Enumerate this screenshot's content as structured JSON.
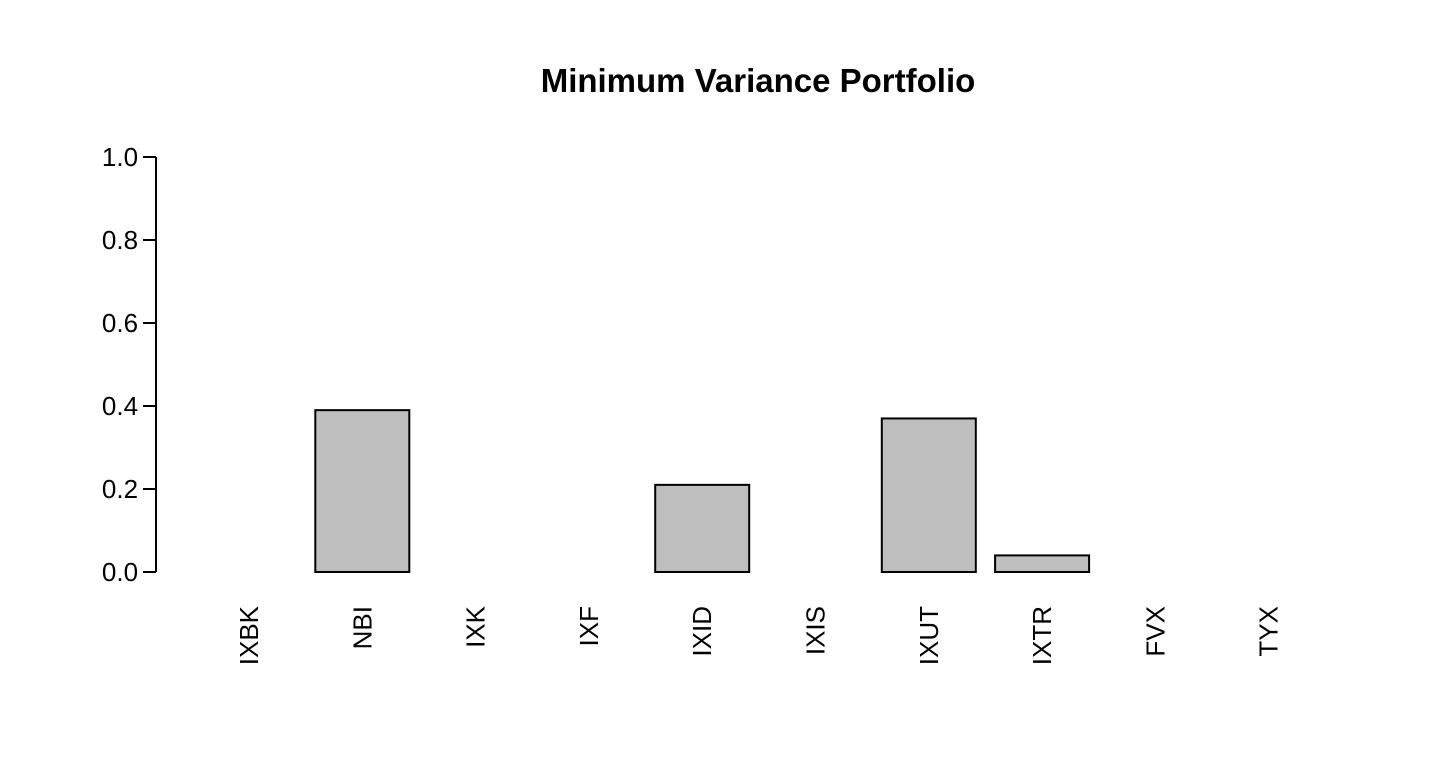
{
  "chart_data": {
    "type": "bar",
    "title": "Minimum Variance Portfolio",
    "xlabel": "",
    "ylabel": "",
    "categories": [
      "IXBK",
      "NBI",
      "IXK",
      "IXF",
      "IXID",
      "IXIS",
      "IXUT",
      "IXTR",
      "FVX",
      "TYX"
    ],
    "values": [
      0.0,
      0.39,
      0.0,
      0.0,
      0.21,
      0.0,
      0.37,
      0.04,
      0.0,
      0.0
    ],
    "ylim": [
      0,
      1.0
    ],
    "yticks": [
      "0.0",
      "0.2",
      "0.4",
      "0.6",
      "0.8",
      "1.0"
    ],
    "grid": false,
    "legend": "none",
    "bar_color": "#bebebe",
    "edge_color": "#000000"
  }
}
